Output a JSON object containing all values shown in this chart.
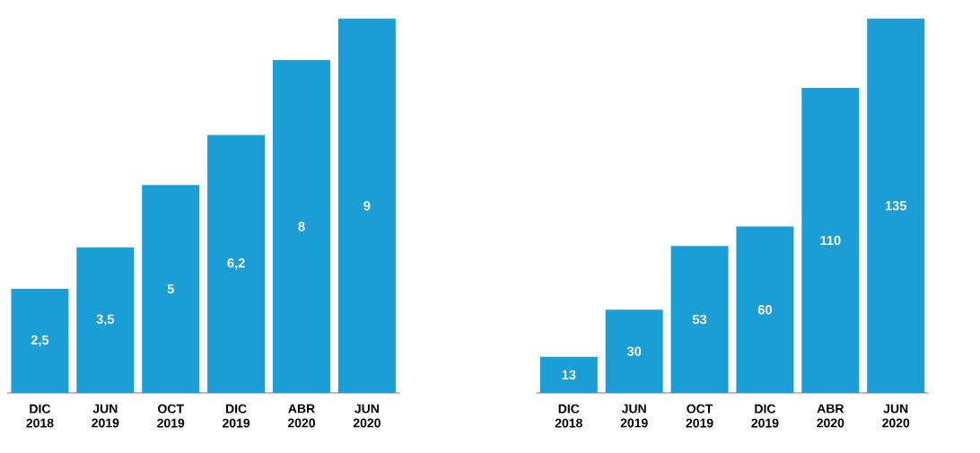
{
  "chart_data": [
    {
      "type": "bar",
      "categories": [
        "DIC 2018",
        "JUN 2019",
        "OCT 2019",
        "DIC 2019",
        "ABR 2020",
        "JUN 2020"
      ],
      "values": [
        2.5,
        3.5,
        5,
        6.2,
        8,
        9
      ],
      "value_labels": [
        "2,5",
        "3,5",
        "5",
        "6,2",
        "8",
        "9"
      ],
      "color": "#1b9ed6",
      "ylim": [
        0,
        9
      ]
    },
    {
      "type": "bar",
      "categories": [
        "DIC 2018",
        "JUN 2019",
        "OCT 2019",
        "DIC 2019",
        "ABR 2020",
        "JUN 2020"
      ],
      "values": [
        13,
        30,
        53,
        60,
        110,
        135
      ],
      "data_labels": true,
      "color": "#1b9ed6",
      "ylim": [
        0,
        135
      ]
    }
  ]
}
